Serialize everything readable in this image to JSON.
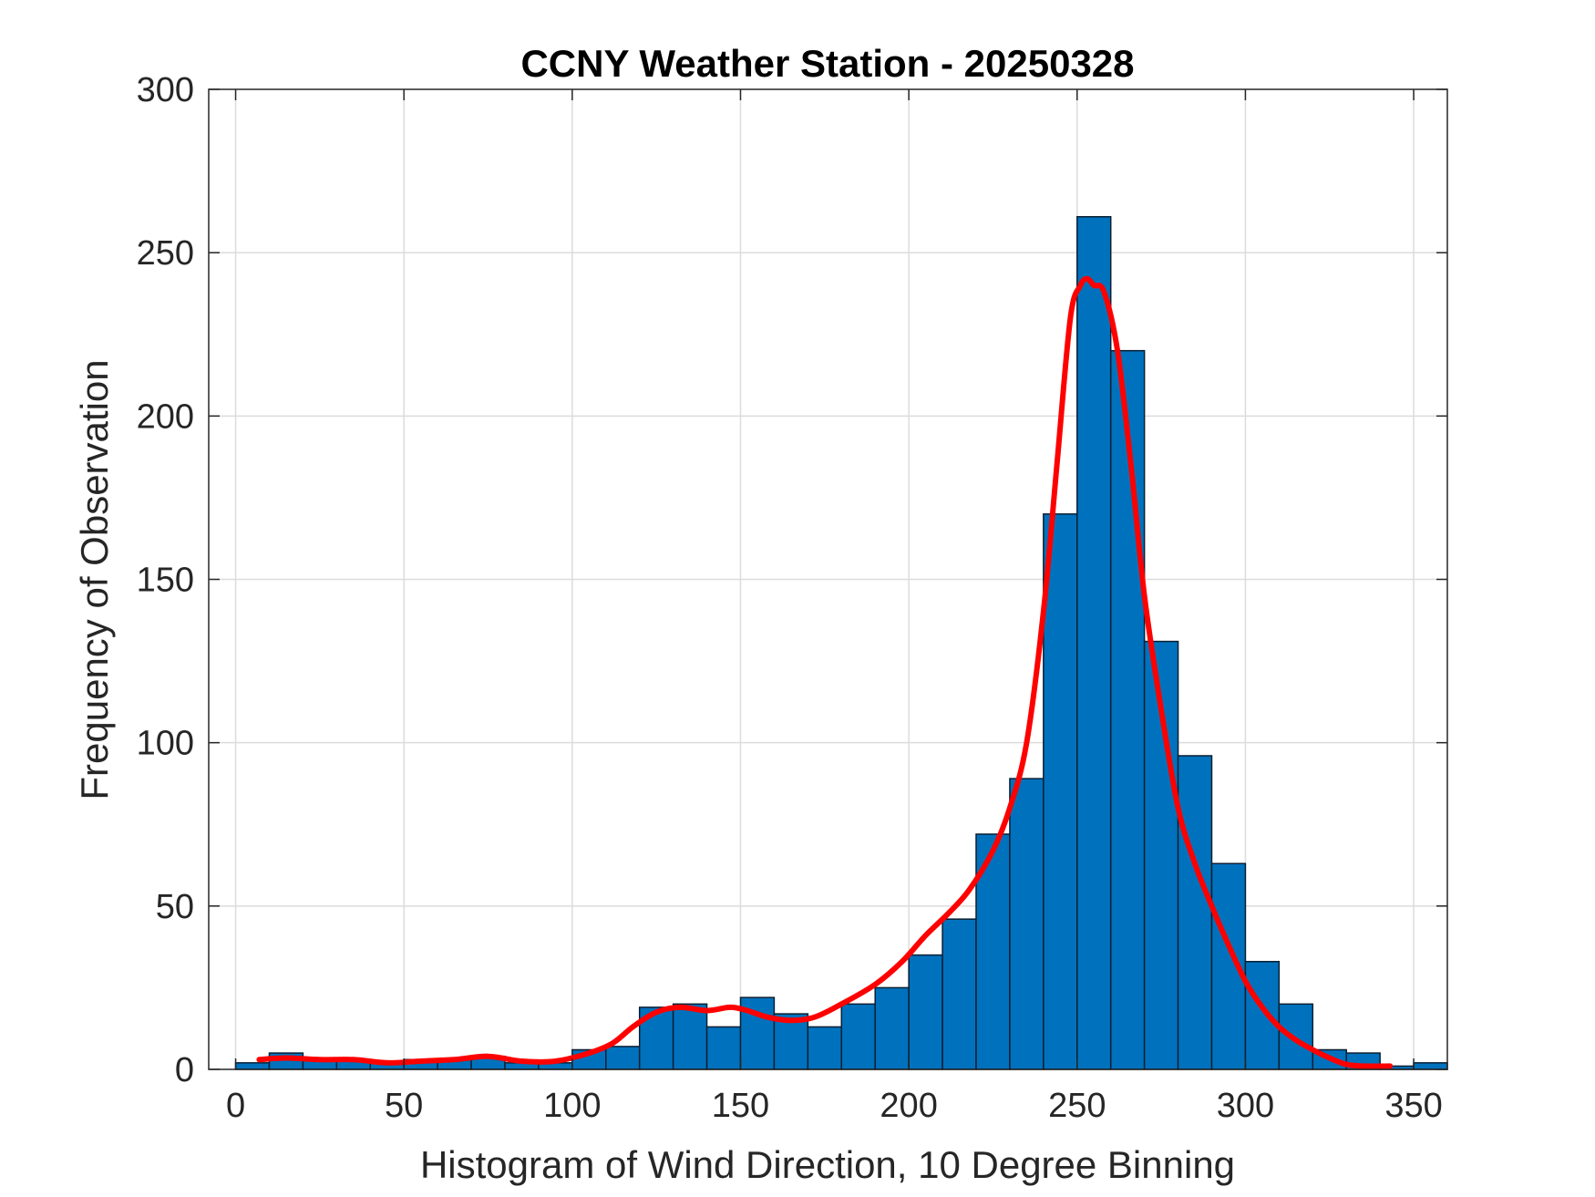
{
  "chart_data": {
    "type": "bar",
    "title": "CCNY Weather Station - 20250328",
    "xlabel": "Histogram of Wind Direction, 10 Degree Binning",
    "ylabel": "Frequency of Observation",
    "xlim": [
      -8,
      360
    ],
    "ylim": [
      0,
      300
    ],
    "xticks": [
      0,
      50,
      100,
      150,
      200,
      250,
      300,
      350
    ],
    "yticks": [
      0,
      50,
      100,
      150,
      200,
      250,
      300
    ],
    "grid": true,
    "bin_width": 10,
    "bin_starts": [
      0,
      10,
      20,
      30,
      40,
      50,
      60,
      70,
      80,
      90,
      100,
      110,
      120,
      130,
      140,
      150,
      160,
      170,
      180,
      190,
      200,
      210,
      220,
      230,
      240,
      250,
      260,
      270,
      280,
      290,
      300,
      310,
      320,
      330,
      340,
      350
    ],
    "values": [
      2,
      5,
      3,
      3,
      2,
      3,
      3,
      4,
      2,
      2,
      6,
      7,
      19,
      20,
      13,
      22,
      17,
      13,
      20,
      25,
      35,
      46,
      72,
      89,
      170,
      261,
      220,
      131,
      96,
      63,
      33,
      20,
      6,
      5,
      1,
      2
    ],
    "curve_x": [
      7,
      15,
      25,
      35,
      45,
      55,
      65,
      75,
      85,
      95,
      105,
      112,
      118,
      125,
      132,
      140,
      147,
      152,
      158,
      165,
      172,
      180,
      190,
      198,
      205,
      212,
      218,
      225,
      230,
      235,
      240,
      244,
      248,
      251,
      253,
      255,
      258,
      262,
      266,
      270,
      275,
      280,
      285,
      290,
      295,
      300,
      305,
      310,
      315,
      320,
      325,
      330,
      335,
      343
    ],
    "curve_y": [
      3,
      3.5,
      3,
      3,
      2,
      2.5,
      3,
      4,
      2.5,
      2.5,
      5,
      8,
      13,
      17.5,
      19,
      18,
      19,
      18,
      16,
      15,
      16,
      20,
      26,
      33,
      41,
      48,
      55,
      67,
      80,
      100,
      140,
      185,
      230,
      240,
      242,
      240,
      238,
      220,
      185,
      145,
      110,
      80,
      63,
      50,
      38,
      27,
      19,
      13,
      9,
      6,
      3.5,
      1.5,
      1,
      1
    ],
    "colors": {
      "bar_fill": "#0072BD",
      "bar_edge": "#0b1f33",
      "curve": "#ff0000",
      "grid": "#dcdcdc",
      "axis": "#262626"
    }
  }
}
